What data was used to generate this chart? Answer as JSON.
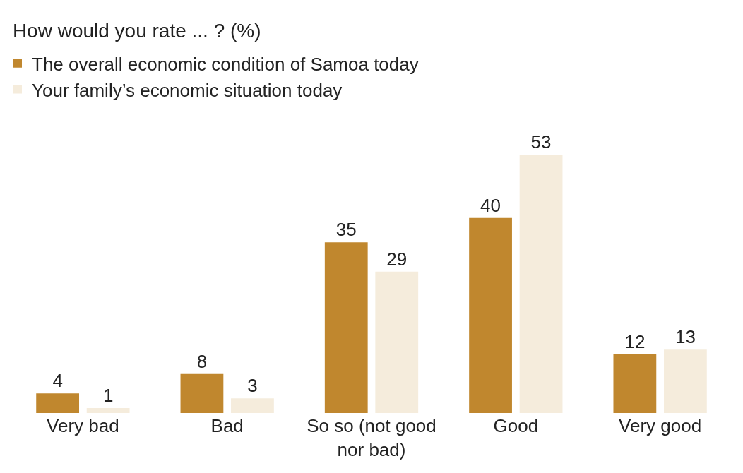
{
  "chart_data": {
    "type": "bar",
    "title": "How would you rate ... ? (%)",
    "categories": [
      "Very bad",
      "Bad",
      "So so (not good nor bad)",
      "Good",
      "Very good"
    ],
    "series": [
      {
        "name": "The overall economic condition of Samoa today",
        "color": "#c0872e",
        "values": [
          4,
          8,
          35,
          40,
          12
        ]
      },
      {
        "name": "Your family’s economic situation today",
        "color": "#f5ecdc",
        "values": [
          1,
          3,
          29,
          53,
          13
        ]
      }
    ],
    "data_labels": true,
    "legend": "top left"
  }
}
